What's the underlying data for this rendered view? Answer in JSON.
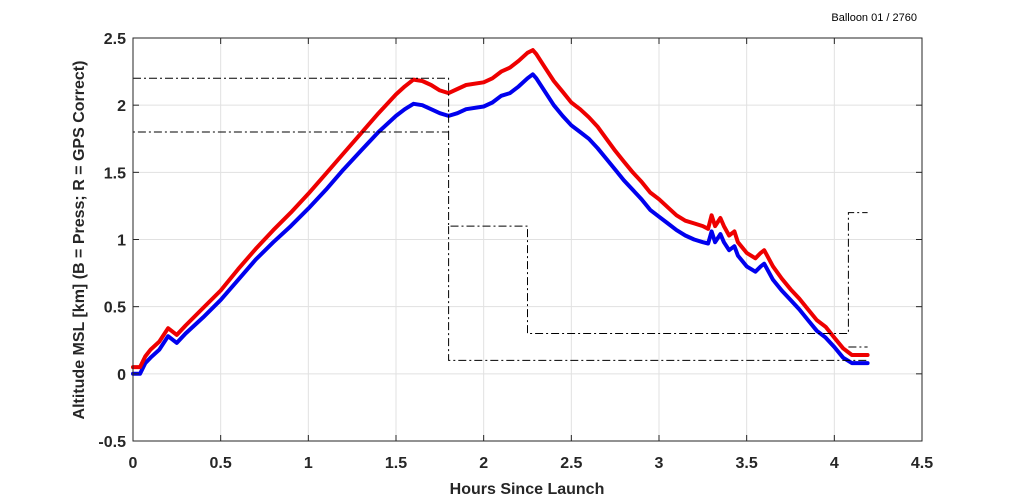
{
  "chart_data": {
    "type": "line",
    "title": "",
    "annotation": "Balloon 01 / 2760",
    "xlabel": "Hours Since Launch",
    "ylabel": "Altitude MSL [km]   (B = Press; R = GPS Correct)",
    "xlim": [
      0,
      4.5
    ],
    "ylim": [
      -0.5,
      2.5
    ],
    "xticks": [
      0,
      0.5,
      1,
      1.5,
      2,
      2.5,
      3,
      3.5,
      4,
      4.5
    ],
    "yticks": [
      -0.5,
      0,
      0.5,
      1,
      1.5,
      2,
      2.5
    ],
    "xtick_labels": [
      "0",
      "0.5",
      "1",
      "1.5",
      "2",
      "2.5",
      "3",
      "3.5",
      "4",
      "4.5"
    ],
    "ytick_labels": [
      "-0.5",
      "0",
      "0.5",
      "1",
      "1.5",
      "2",
      "2.5"
    ],
    "grid": true,
    "series": [
      {
        "color": "#0000ee",
        "style": "solid",
        "points": [
          [
            0.0,
            0.0
          ],
          [
            0.04,
            0.0
          ],
          [
            0.07,
            0.08
          ],
          [
            0.1,
            0.12
          ],
          [
            0.15,
            0.18
          ],
          [
            0.2,
            0.28
          ],
          [
            0.25,
            0.23
          ],
          [
            0.3,
            0.3
          ],
          [
            0.4,
            0.42
          ],
          [
            0.5,
            0.55
          ],
          [
            0.6,
            0.7
          ],
          [
            0.7,
            0.85
          ],
          [
            0.8,
            0.98
          ],
          [
            0.9,
            1.1
          ],
          [
            1.0,
            1.23
          ],
          [
            1.1,
            1.37
          ],
          [
            1.2,
            1.52
          ],
          [
            1.3,
            1.66
          ],
          [
            1.4,
            1.8
          ],
          [
            1.5,
            1.92
          ],
          [
            1.55,
            1.97
          ],
          [
            1.6,
            2.01
          ],
          [
            1.65,
            2.0
          ],
          [
            1.7,
            1.97
          ],
          [
            1.75,
            1.94
          ],
          [
            1.8,
            1.92
          ],
          [
            1.85,
            1.94
          ],
          [
            1.9,
            1.97
          ],
          [
            2.0,
            1.99
          ],
          [
            2.05,
            2.02
          ],
          [
            2.1,
            2.07
          ],
          [
            2.15,
            2.09
          ],
          [
            2.2,
            2.14
          ],
          [
            2.25,
            2.2
          ],
          [
            2.28,
            2.23
          ],
          [
            2.3,
            2.2
          ],
          [
            2.35,
            2.1
          ],
          [
            2.4,
            2.0
          ],
          [
            2.45,
            1.92
          ],
          [
            2.5,
            1.85
          ],
          [
            2.55,
            1.8
          ],
          [
            2.6,
            1.75
          ],
          [
            2.65,
            1.68
          ],
          [
            2.7,
            1.6
          ],
          [
            2.75,
            1.52
          ],
          [
            2.8,
            1.44
          ],
          [
            2.85,
            1.37
          ],
          [
            2.9,
            1.3
          ],
          [
            2.95,
            1.22
          ],
          [
            3.0,
            1.17
          ],
          [
            3.05,
            1.12
          ],
          [
            3.1,
            1.07
          ],
          [
            3.15,
            1.03
          ],
          [
            3.2,
            1.0
          ],
          [
            3.25,
            0.98
          ],
          [
            3.28,
            0.97
          ],
          [
            3.3,
            1.06
          ],
          [
            3.32,
            0.98
          ],
          [
            3.35,
            1.04
          ],
          [
            3.37,
            0.98
          ],
          [
            3.4,
            0.92
          ],
          [
            3.43,
            0.95
          ],
          [
            3.45,
            0.88
          ],
          [
            3.5,
            0.8
          ],
          [
            3.55,
            0.76
          ],
          [
            3.58,
            0.8
          ],
          [
            3.6,
            0.82
          ],
          [
            3.65,
            0.7
          ],
          [
            3.7,
            0.62
          ],
          [
            3.75,
            0.55
          ],
          [
            3.8,
            0.48
          ],
          [
            3.85,
            0.4
          ],
          [
            3.9,
            0.32
          ],
          [
            3.95,
            0.27
          ],
          [
            4.0,
            0.2
          ],
          [
            4.05,
            0.12
          ],
          [
            4.1,
            0.08
          ],
          [
            4.15,
            0.08
          ],
          [
            4.19,
            0.08
          ]
        ]
      },
      {
        "color": "#ee0000",
        "style": "solid",
        "points": [
          [
            0.0,
            0.05
          ],
          [
            0.04,
            0.05
          ],
          [
            0.07,
            0.13
          ],
          [
            0.1,
            0.18
          ],
          [
            0.15,
            0.24
          ],
          [
            0.2,
            0.34
          ],
          [
            0.25,
            0.29
          ],
          [
            0.3,
            0.36
          ],
          [
            0.4,
            0.49
          ],
          [
            0.5,
            0.62
          ],
          [
            0.6,
            0.78
          ],
          [
            0.7,
            0.93
          ],
          [
            0.8,
            1.07
          ],
          [
            0.9,
            1.2
          ],
          [
            1.0,
            1.34
          ],
          [
            1.1,
            1.49
          ],
          [
            1.2,
            1.64
          ],
          [
            1.3,
            1.79
          ],
          [
            1.4,
            1.94
          ],
          [
            1.5,
            2.08
          ],
          [
            1.55,
            2.14
          ],
          [
            1.6,
            2.19
          ],
          [
            1.65,
            2.18
          ],
          [
            1.7,
            2.15
          ],
          [
            1.75,
            2.11
          ],
          [
            1.8,
            2.09
          ],
          [
            1.85,
            2.12
          ],
          [
            1.9,
            2.15
          ],
          [
            2.0,
            2.17
          ],
          [
            2.05,
            2.2
          ],
          [
            2.1,
            2.25
          ],
          [
            2.15,
            2.28
          ],
          [
            2.2,
            2.33
          ],
          [
            2.25,
            2.39
          ],
          [
            2.28,
            2.41
          ],
          [
            2.3,
            2.38
          ],
          [
            2.35,
            2.28
          ],
          [
            2.4,
            2.18
          ],
          [
            2.45,
            2.1
          ],
          [
            2.5,
            2.02
          ],
          [
            2.55,
            1.97
          ],
          [
            2.6,
            1.91
          ],
          [
            2.65,
            1.84
          ],
          [
            2.7,
            1.75
          ],
          [
            2.75,
            1.66
          ],
          [
            2.8,
            1.58
          ],
          [
            2.85,
            1.5
          ],
          [
            2.9,
            1.43
          ],
          [
            2.95,
            1.35
          ],
          [
            3.0,
            1.3
          ],
          [
            3.05,
            1.24
          ],
          [
            3.1,
            1.18
          ],
          [
            3.15,
            1.14
          ],
          [
            3.2,
            1.12
          ],
          [
            3.25,
            1.1
          ],
          [
            3.28,
            1.08
          ],
          [
            3.3,
            1.18
          ],
          [
            3.32,
            1.1
          ],
          [
            3.35,
            1.16
          ],
          [
            3.37,
            1.1
          ],
          [
            3.4,
            1.03
          ],
          [
            3.43,
            1.06
          ],
          [
            3.45,
            0.98
          ],
          [
            3.5,
            0.9
          ],
          [
            3.55,
            0.86
          ],
          [
            3.58,
            0.9
          ],
          [
            3.6,
            0.92
          ],
          [
            3.65,
            0.8
          ],
          [
            3.7,
            0.71
          ],
          [
            3.75,
            0.63
          ],
          [
            3.8,
            0.56
          ],
          [
            3.85,
            0.48
          ],
          [
            3.9,
            0.4
          ],
          [
            3.95,
            0.35
          ],
          [
            4.0,
            0.27
          ],
          [
            4.05,
            0.19
          ],
          [
            4.1,
            0.14
          ],
          [
            4.15,
            0.14
          ],
          [
            4.19,
            0.14
          ]
        ]
      },
      {
        "color": "#000000",
        "style": "dashdot",
        "points": [
          [
            0.0,
            2.2
          ],
          [
            1.8,
            2.2
          ],
          [
            1.8,
            1.8
          ],
          [
            0.0,
            1.8
          ]
        ]
      },
      {
        "color": "#000000",
        "style": "dashdot",
        "points": [
          [
            1.8,
            1.8
          ],
          [
            1.8,
            1.1
          ],
          [
            2.25,
            1.1
          ],
          [
            2.25,
            0.3
          ],
          [
            4.08,
            0.3
          ],
          [
            4.08,
            1.2
          ],
          [
            4.19,
            1.2
          ]
        ]
      },
      {
        "color": "#000000",
        "style": "dashdot",
        "points": [
          [
            1.8,
            1.1
          ],
          [
            1.8,
            0.1
          ],
          [
            4.19,
            0.1
          ]
        ]
      },
      {
        "color": "#000000",
        "style": "dashdot",
        "points": [
          [
            4.08,
            0.2
          ],
          [
            4.19,
            0.2
          ]
        ]
      }
    ]
  }
}
